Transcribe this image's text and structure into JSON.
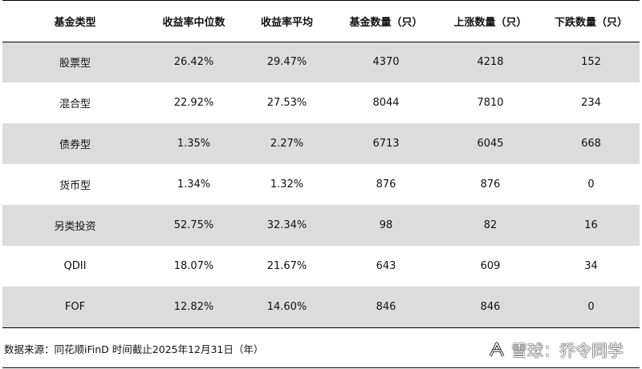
{
  "table": {
    "headers": [
      "基金类型",
      "收益率中位数",
      "收益率平均",
      "基金数量（只）",
      "上涨数量（只）",
      "下跌数量（只）"
    ],
    "rows": [
      [
        "股票型",
        "26.42%",
        "29.47%",
        "4370",
        "4218",
        "152"
      ],
      [
        "混合型",
        "22.92%",
        "27.53%",
        "8044",
        "7810",
        "234"
      ],
      [
        "债券型",
        "1.35%",
        "2.27%",
        "6713",
        "6045",
        "668"
      ],
      [
        "货币型",
        "1.34%",
        "1.32%",
        "876",
        "876",
        "0"
      ],
      [
        "另类投资",
        "52.75%",
        "32.34%",
        "98",
        "82",
        "16"
      ],
      [
        "QDII",
        "18.07%",
        "21.67%",
        "643",
        "609",
        "34"
      ],
      [
        "FOF",
        "12.82%",
        "14.60%",
        "846",
        "846",
        "0"
      ]
    ]
  },
  "footer": {
    "source": "数据来源：同花顺iFinD 时间截止2025年12月31日（年）",
    "watermark_text": "雪球：乔令同学"
  },
  "colors": {
    "stripe": "#dcdcdc",
    "rule": "#000000",
    "text": "#111111"
  },
  "icons": {
    "watermark_logo": "snowball-logo-icon"
  }
}
